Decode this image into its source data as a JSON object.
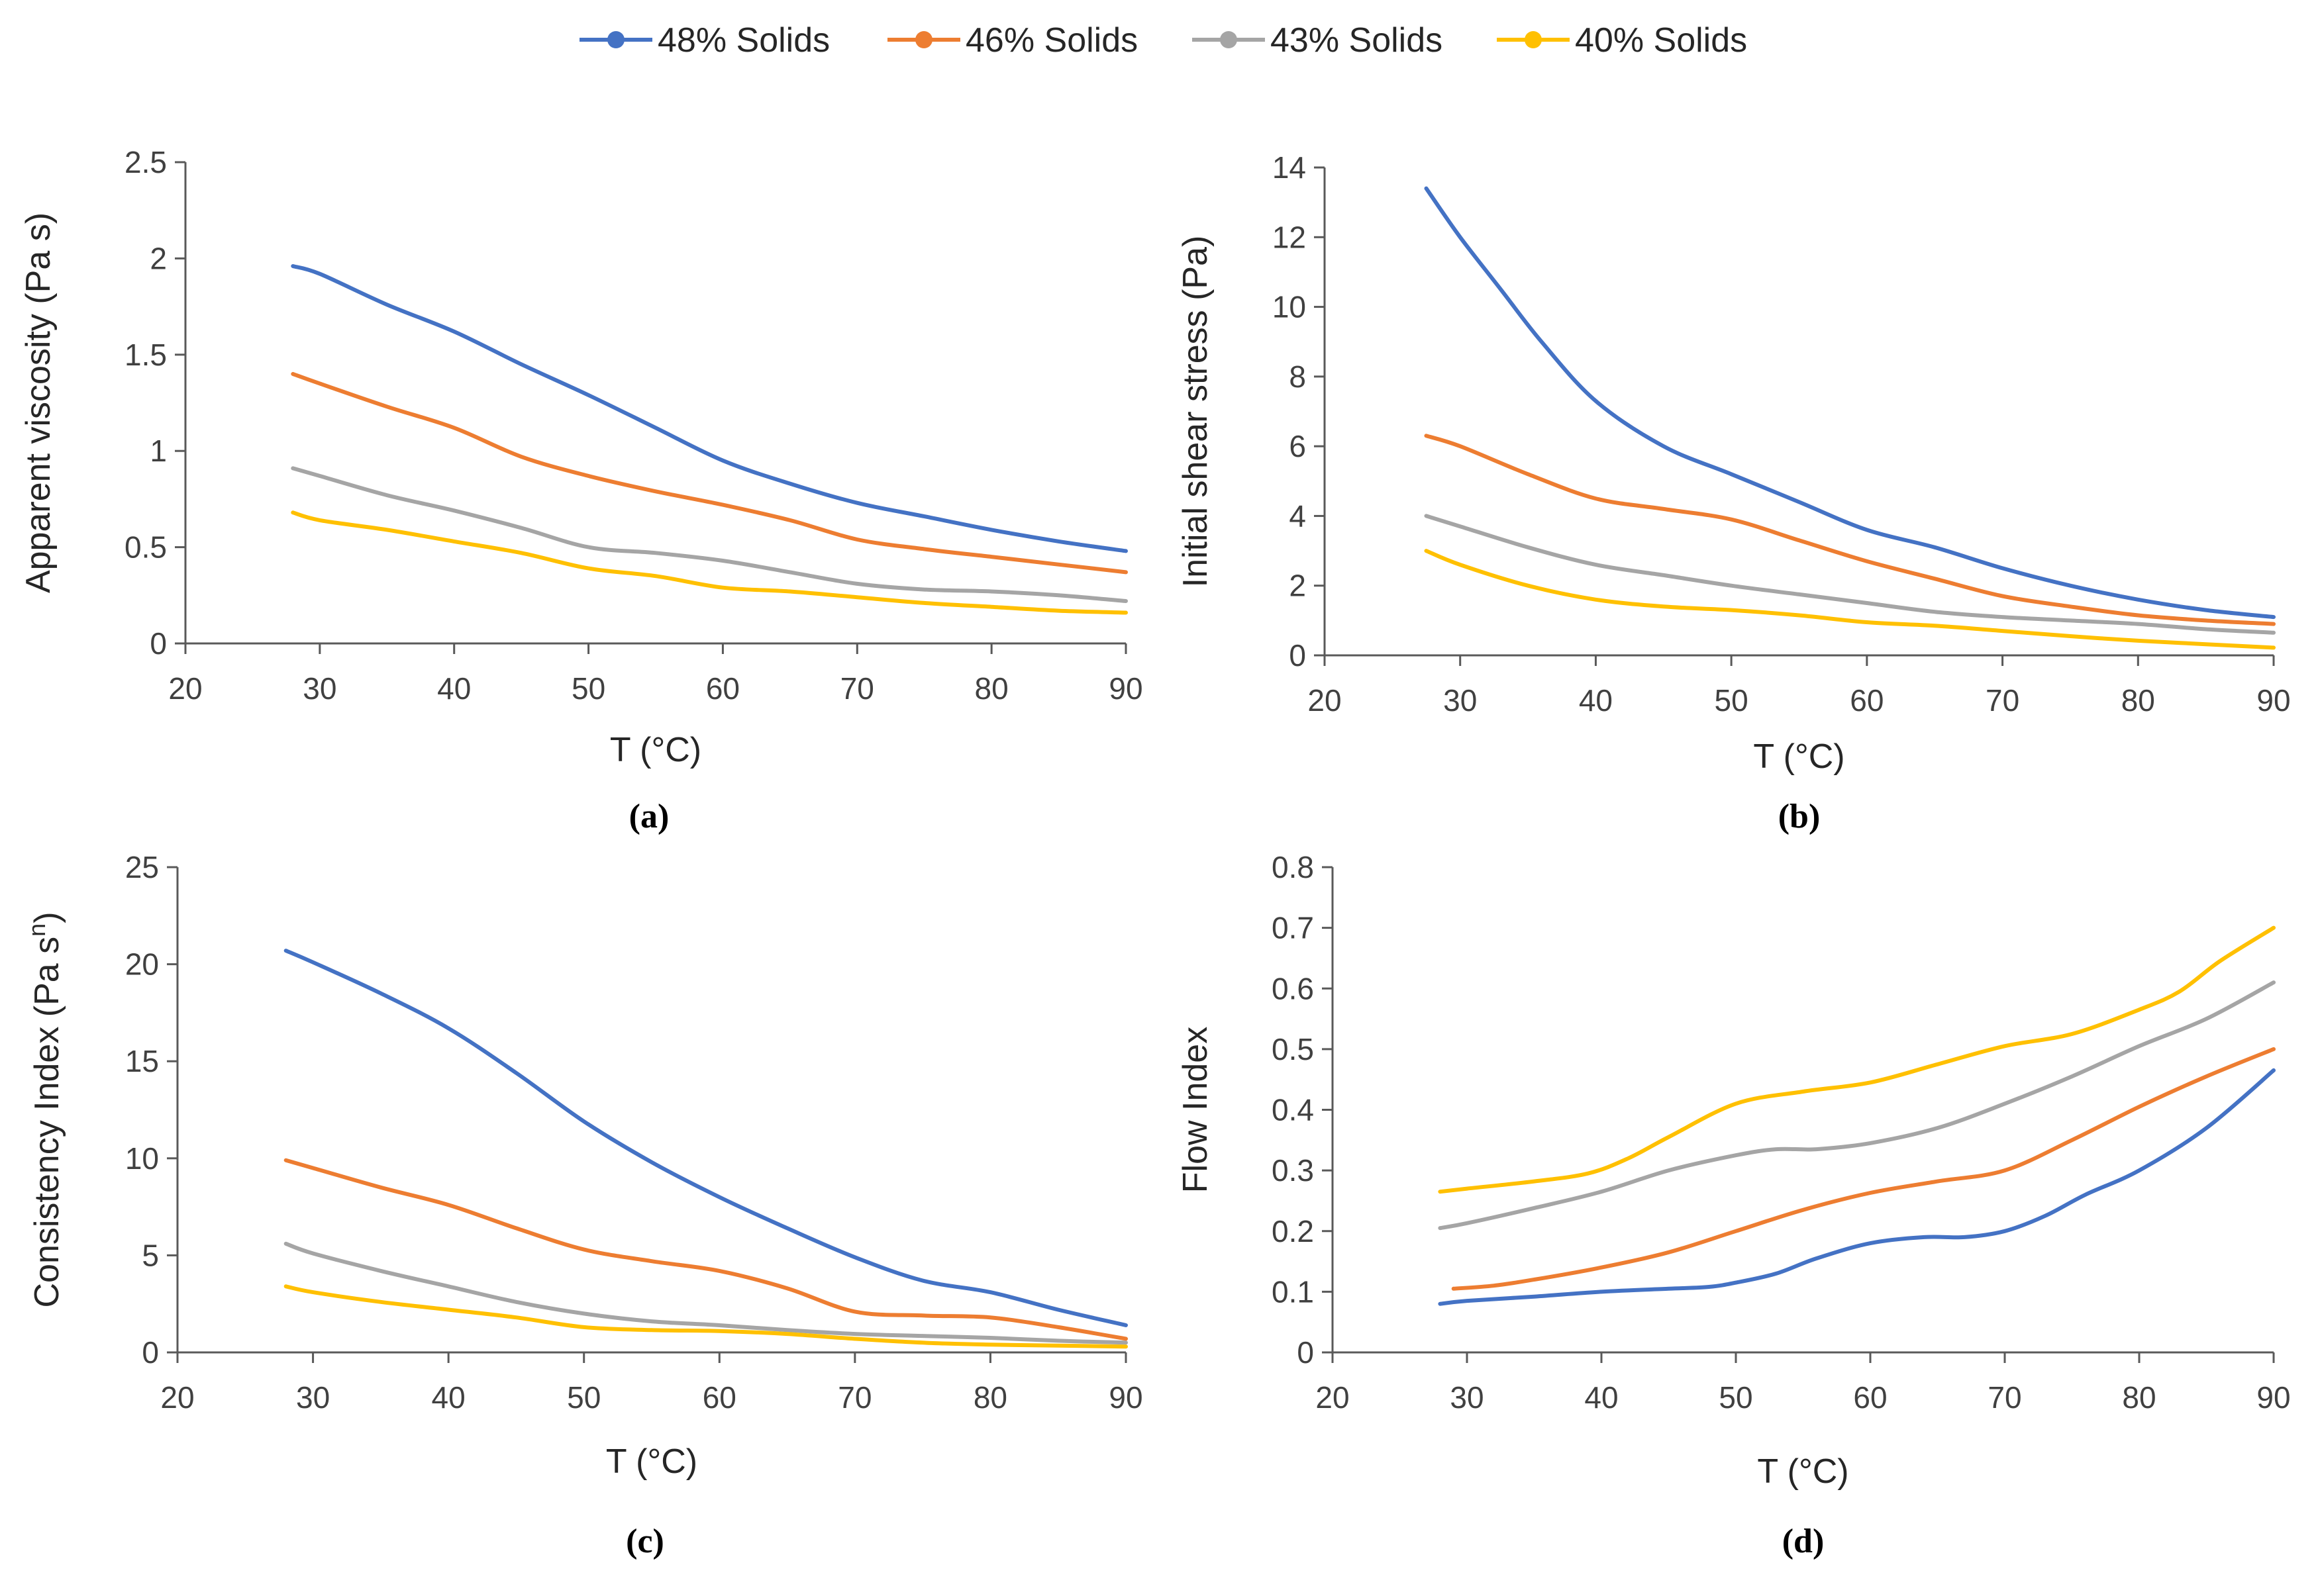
{
  "colors": {
    "s48": "#4472c4",
    "s46": "#ed7d31",
    "s43": "#a5a5a5",
    "s40": "#ffc000",
    "axis": "#595959"
  },
  "legend": {
    "items": [
      {
        "key": "s48",
        "label": "48% Solids"
      },
      {
        "key": "s46",
        "label": "46% Solids"
      },
      {
        "key": "s43",
        "label": "43% Solids"
      },
      {
        "key": "s40",
        "label": "40% Solids"
      }
    ]
  },
  "chart_data": [
    {
      "type": "line",
      "panel_label": "(a)",
      "xlabel": "T (°C)",
      "ylabel": "Apparent viscosity (Pa s)",
      "ylabel_sup": "",
      "ylabel_after": "",
      "xlim": [
        20,
        90
      ],
      "xticks": [
        20,
        30,
        40,
        50,
        60,
        70,
        80,
        90
      ],
      "ylim": [
        0,
        2.5
      ],
      "yticks": [
        0,
        0.5,
        1,
        1.5,
        2,
        2.5
      ],
      "series": [
        {
          "name": "48% Solids",
          "color_key": "s48",
          "x": [
            28,
            30,
            35,
            40,
            45,
            50,
            55,
            60,
            65,
            70,
            75,
            80,
            85,
            90
          ],
          "y": [
            1.96,
            1.92,
            1.76,
            1.62,
            1.45,
            1.29,
            1.12,
            0.95,
            0.83,
            0.73,
            0.66,
            0.59,
            0.53,
            0.48
          ]
        },
        {
          "name": "46% Solids",
          "color_key": "s46",
          "x": [
            28,
            30,
            35,
            40,
            45,
            50,
            55,
            60,
            65,
            70,
            75,
            80,
            85,
            90
          ],
          "y": [
            1.4,
            1.35,
            1.23,
            1.12,
            0.97,
            0.87,
            0.79,
            0.72,
            0.64,
            0.54,
            0.49,
            0.45,
            0.41,
            0.37
          ]
        },
        {
          "name": "43% Solids",
          "color_key": "s43",
          "x": [
            28,
            30,
            35,
            40,
            45,
            50,
            55,
            60,
            65,
            70,
            75,
            80,
            85,
            90
          ],
          "y": [
            0.91,
            0.87,
            0.77,
            0.69,
            0.6,
            0.5,
            0.47,
            0.43,
            0.37,
            0.31,
            0.28,
            0.27,
            0.25,
            0.22
          ]
        },
        {
          "name": "40% Solids",
          "color_key": "s40",
          "x": [
            28,
            30,
            35,
            40,
            45,
            50,
            55,
            60,
            65,
            70,
            75,
            80,
            85,
            90
          ],
          "y": [
            0.68,
            0.64,
            0.59,
            0.53,
            0.47,
            0.39,
            0.35,
            0.29,
            0.27,
            0.24,
            0.21,
            0.19,
            0.17,
            0.16
          ]
        }
      ]
    },
    {
      "type": "line",
      "panel_label": "(b)",
      "xlabel": "T (°C)",
      "ylabel": "Initial shear stress (Pa)",
      "ylabel_sup": "",
      "ylabel_after": "",
      "xlim": [
        20,
        90
      ],
      "xticks": [
        20,
        30,
        40,
        50,
        60,
        70,
        80,
        90
      ],
      "ylim": [
        0,
        14
      ],
      "yticks": [
        0,
        2,
        4,
        6,
        8,
        10,
        12,
        14
      ],
      "series": [
        {
          "name": "48% Solids",
          "color_key": "s48",
          "x": [
            27.5,
            30,
            33,
            36,
            40,
            45,
            50,
            55,
            60,
            65,
            70,
            75,
            80,
            85,
            90
          ],
          "y": [
            13.4,
            12.0,
            10.5,
            9.0,
            7.3,
            6.0,
            5.2,
            4.4,
            3.6,
            3.1,
            2.5,
            2.0,
            1.6,
            1.3,
            1.1
          ]
        },
        {
          "name": "46% Solids",
          "color_key": "s46",
          "x": [
            27.5,
            30,
            35,
            40,
            45,
            50,
            55,
            60,
            65,
            70,
            75,
            80,
            85,
            90
          ],
          "y": [
            6.3,
            6.0,
            5.2,
            4.5,
            4.2,
            3.9,
            3.3,
            2.7,
            2.2,
            1.7,
            1.4,
            1.15,
            1.0,
            0.9
          ]
        },
        {
          "name": "43% Solids",
          "color_key": "s43",
          "x": [
            27.5,
            30,
            35,
            40,
            45,
            50,
            55,
            60,
            65,
            70,
            75,
            80,
            85,
            90
          ],
          "y": [
            4.0,
            3.7,
            3.1,
            2.6,
            2.3,
            2.0,
            1.75,
            1.5,
            1.25,
            1.1,
            1.0,
            0.9,
            0.75,
            0.65
          ]
        },
        {
          "name": "40% Solids",
          "color_key": "s40",
          "x": [
            27.5,
            30,
            35,
            40,
            45,
            50,
            55,
            60,
            65,
            70,
            75,
            80,
            85,
            90
          ],
          "y": [
            3.0,
            2.6,
            2.0,
            1.6,
            1.4,
            1.3,
            1.15,
            0.95,
            0.85,
            0.7,
            0.55,
            0.42,
            0.32,
            0.22
          ]
        }
      ]
    },
    {
      "type": "line",
      "panel_label": "(c)",
      "xlabel": "T (°C)",
      "ylabel": "Consistency Index (Pa s",
      "ylabel_sup": "n",
      "ylabel_after": ")",
      "xlim": [
        20,
        90
      ],
      "xticks": [
        20,
        30,
        40,
        50,
        60,
        70,
        80,
        90
      ],
      "ylim": [
        0,
        25
      ],
      "yticks": [
        0,
        5,
        10,
        15,
        20,
        25
      ],
      "series": [
        {
          "name": "48% Solids",
          "color_key": "s48",
          "x": [
            28,
            30,
            35,
            40,
            45,
            50,
            55,
            60,
            65,
            70,
            75,
            80,
            85,
            90
          ],
          "y": [
            20.7,
            20.1,
            18.5,
            16.7,
            14.4,
            11.9,
            9.8,
            8.0,
            6.4,
            4.9,
            3.7,
            3.1,
            2.2,
            1.4
          ]
        },
        {
          "name": "46% Solids",
          "color_key": "s46",
          "x": [
            28,
            30,
            35,
            40,
            45,
            50,
            55,
            60,
            65,
            70,
            75,
            80,
            85,
            90
          ],
          "y": [
            9.9,
            9.5,
            8.5,
            7.6,
            6.4,
            5.3,
            4.7,
            4.2,
            3.3,
            2.1,
            1.9,
            1.8,
            1.3,
            0.7
          ]
        },
        {
          "name": "43% Solids",
          "color_key": "s43",
          "x": [
            28,
            30,
            35,
            40,
            45,
            50,
            55,
            60,
            65,
            70,
            75,
            80,
            85,
            90
          ],
          "y": [
            5.6,
            5.1,
            4.2,
            3.4,
            2.6,
            2.0,
            1.6,
            1.4,
            1.15,
            0.95,
            0.85,
            0.75,
            0.6,
            0.5
          ]
        },
        {
          "name": "40% Solids",
          "color_key": "s40",
          "x": [
            28,
            30,
            35,
            40,
            45,
            50,
            55,
            60,
            65,
            70,
            75,
            80,
            85,
            90
          ],
          "y": [
            3.4,
            3.1,
            2.6,
            2.2,
            1.8,
            1.3,
            1.15,
            1.1,
            0.95,
            0.7,
            0.5,
            0.4,
            0.35,
            0.3
          ]
        }
      ]
    },
    {
      "type": "line",
      "panel_label": "(d)",
      "xlabel": "T (°C)",
      "ylabel": "Flow Index",
      "ylabel_sup": "",
      "ylabel_after": "",
      "xlim": [
        20,
        90
      ],
      "xticks": [
        20,
        30,
        40,
        50,
        60,
        70,
        80,
        90
      ],
      "ylim": [
        0,
        0.8
      ],
      "yticks": [
        0,
        0.1,
        0.2,
        0.3,
        0.4,
        0.5,
        0.6,
        0.7,
        0.8
      ],
      "series": [
        {
          "name": "48% Solids",
          "color_key": "s48",
          "x": [
            28,
            30,
            35,
            40,
            45,
            48,
            50,
            53,
            56,
            60,
            64,
            67,
            70,
            73,
            76,
            80,
            85,
            90
          ],
          "y": [
            0.08,
            0.085,
            0.092,
            0.1,
            0.105,
            0.108,
            0.115,
            0.13,
            0.155,
            0.18,
            0.19,
            0.19,
            0.2,
            0.225,
            0.26,
            0.3,
            0.37,
            0.465
          ]
        },
        {
          "name": "46% Solids",
          "color_key": "s46",
          "x": [
            29,
            32,
            35,
            40,
            45,
            50,
            55,
            60,
            65,
            70,
            75,
            80,
            85,
            90
          ],
          "y": [
            0.105,
            0.11,
            0.12,
            0.14,
            0.165,
            0.2,
            0.235,
            0.263,
            0.282,
            0.3,
            0.35,
            0.405,
            0.455,
            0.5
          ]
        },
        {
          "name": "43% Solids",
          "color_key": "s43",
          "x": [
            28,
            30,
            35,
            40,
            45,
            50,
            53,
            56,
            60,
            65,
            70,
            75,
            80,
            85,
            90
          ],
          "y": [
            0.205,
            0.213,
            0.238,
            0.265,
            0.3,
            0.325,
            0.335,
            0.335,
            0.345,
            0.37,
            0.41,
            0.455,
            0.505,
            0.55,
            0.61
          ]
        },
        {
          "name": "40% Solids",
          "color_key": "s40",
          "x": [
            28,
            30,
            35,
            39,
            42,
            45,
            50,
            55,
            60,
            65,
            70,
            75,
            80,
            83,
            86,
            90
          ],
          "y": [
            0.265,
            0.27,
            0.282,
            0.295,
            0.32,
            0.355,
            0.41,
            0.43,
            0.445,
            0.475,
            0.505,
            0.525,
            0.565,
            0.595,
            0.645,
            0.7
          ]
        }
      ]
    }
  ]
}
